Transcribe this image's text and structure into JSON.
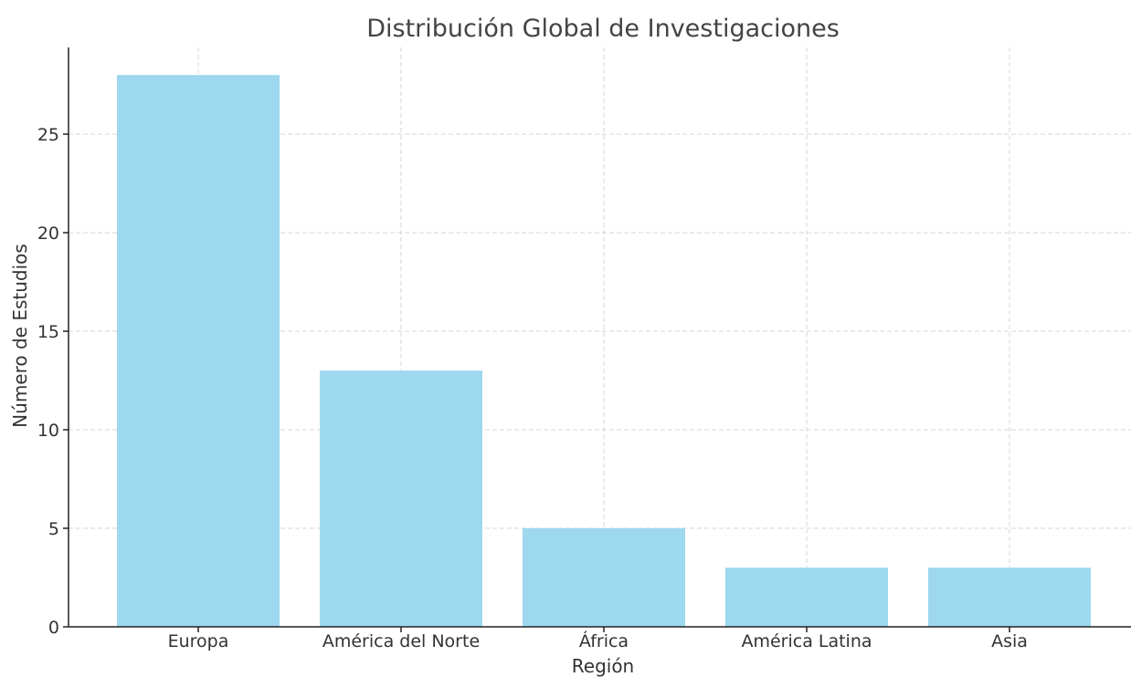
{
  "chart_data": {
    "type": "bar",
    "title": "Distribución Global de Investigaciones",
    "xlabel": "Región",
    "ylabel": "Número de Estudios",
    "categories": [
      "Europa",
      "América del Norte",
      "África",
      "América Latina",
      "Asia"
    ],
    "values": [
      28,
      13,
      5,
      3,
      3
    ],
    "ylim": [
      0,
      29.4
    ],
    "yticks": [
      0,
      5,
      10,
      15,
      20,
      25
    ],
    "grid": true,
    "grid_style": "dashed",
    "bar_color": "#9dd8ee"
  }
}
